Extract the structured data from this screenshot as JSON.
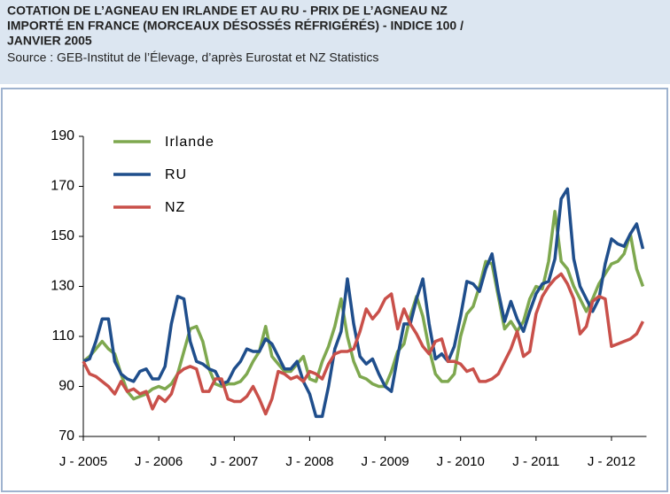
{
  "chart_data": {
    "type": "line",
    "title": [
      "COTATION DE L’AGNEAU EN IRLANDE ET AU RU - PRIX DE L’AGNEAU NZ",
      "IMPORTÉ EN FRANCE (MORCEAUX DÉSOSSÉS RÉFRIGÉRÉS) - INDICE 100 /",
      "JANVIER 2005"
    ],
    "subtitle": "Source : GEB-Institut de l’Élevage, d’après Eurostat et NZ Statistics",
    "categories": [
      "J - 2005",
      null,
      null,
      null,
      null,
      null,
      null,
      null,
      null,
      null,
      null,
      null,
      "J - 2006",
      null,
      null,
      null,
      null,
      null,
      null,
      null,
      null,
      null,
      null,
      null,
      "J - 2007",
      null,
      null,
      null,
      null,
      null,
      null,
      null,
      null,
      null,
      null,
      null,
      "J - 2008",
      null,
      null,
      null,
      null,
      null,
      null,
      null,
      null,
      null,
      null,
      null,
      "J - 2009",
      null,
      null,
      null,
      null,
      null,
      null,
      null,
      null,
      null,
      null,
      null,
      "J - 2010",
      null,
      null,
      null,
      null,
      null,
      null,
      null,
      null,
      null,
      null,
      null,
      "J - 2011",
      null,
      null,
      null,
      null,
      null,
      null,
      null,
      null,
      null,
      null,
      null,
      "J - 2012",
      null,
      null,
      null,
      null,
      null
    ],
    "series": [
      {
        "name": "Irlande",
        "color": "#7ea84f",
        "values": [
          100,
          102,
          105,
          108,
          105,
          103,
          95,
          88,
          85,
          86,
          87,
          89,
          90,
          89,
          91,
          95,
          104,
          113,
          114,
          108,
          97,
          91,
          90,
          91,
          91,
          92,
          95,
          100,
          104,
          114,
          102,
          99,
          96,
          96,
          99,
          102,
          93,
          92,
          100,
          106,
          114,
          125,
          110,
          100,
          94,
          93,
          91,
          90,
          90,
          96,
          104,
          107,
          118,
          126,
          118,
          105,
          95,
          92,
          92,
          95,
          110,
          119,
          122,
          130,
          140,
          139,
          126,
          113,
          116,
          112,
          116,
          125,
          130,
          129,
          140,
          160,
          140,
          137,
          130,
          125,
          120,
          125,
          131,
          135,
          139,
          140,
          143,
          151,
          137,
          130
        ]
      },
      {
        "name": "RU",
        "color": "#1f4e8c",
        "values": [
          100,
          101,
          108,
          117,
          117,
          100,
          95,
          93,
          92,
          96,
          97,
          93,
          93,
          98,
          115,
          126,
          125,
          108,
          100,
          99,
          97,
          96,
          91,
          92,
          97,
          100,
          105,
          104,
          104,
          109,
          107,
          102,
          97,
          97,
          100,
          92,
          87,
          78,
          78,
          90,
          105,
          112,
          133,
          115,
          102,
          99,
          101,
          95,
          90,
          88,
          102,
          115,
          115,
          125,
          133,
          115,
          101,
          103,
          100,
          106,
          118,
          132,
          131,
          128,
          137,
          143,
          128,
          116,
          124,
          117,
          112,
          120,
          127,
          131,
          132,
          141,
          165,
          169,
          141,
          130,
          125,
          120,
          125,
          139,
          149,
          147,
          146,
          151,
          155,
          145
        ]
      },
      {
        "name": "NZ",
        "color": "#c9504a",
        "values": [
          100,
          95,
          94,
          92,
          90,
          87,
          92,
          88,
          89,
          87,
          88,
          81,
          86,
          84,
          87,
          95,
          97,
          98,
          97,
          88,
          88,
          93,
          93,
          85,
          84,
          84,
          86,
          90,
          85,
          79,
          85,
          96,
          95,
          93,
          94,
          92,
          96,
          95,
          93,
          99,
          103,
          104,
          104,
          105,
          112,
          121,
          117,
          120,
          125,
          127,
          113,
          121,
          115,
          111,
          106,
          103,
          108,
          109,
          100,
          100,
          99,
          96,
          97,
          92,
          92,
          93,
          95,
          100,
          105,
          112,
          102,
          104,
          119,
          126,
          130,
          133,
          135,
          131,
          125,
          111,
          114,
          124,
          126,
          125,
          106,
          107,
          108,
          109,
          111,
          116
        ]
      }
    ],
    "ylim": [
      70,
      190
    ],
    "yticks": [
      70,
      90,
      110,
      130,
      150,
      170,
      190
    ],
    "grid": false,
    "legend": "top-left"
  }
}
